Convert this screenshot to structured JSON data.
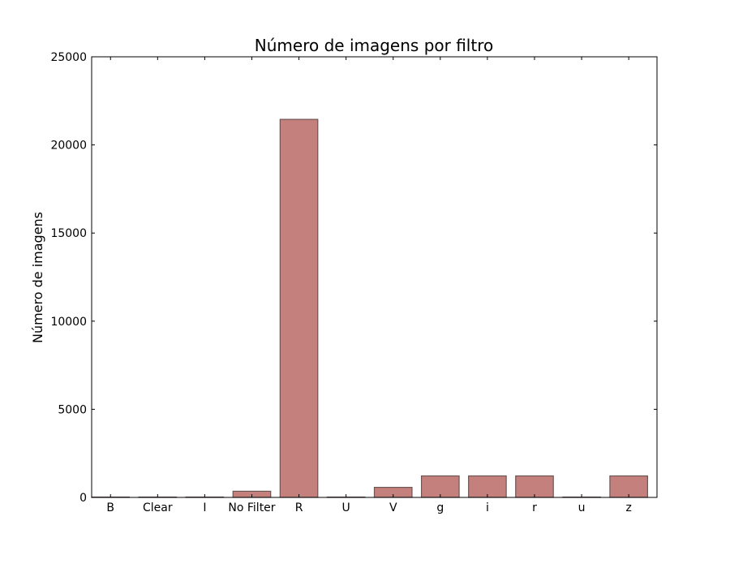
{
  "chart_data": {
    "type": "bar",
    "title": "Número de imagens por filtro",
    "xlabel": "",
    "ylabel": "Número de imagens",
    "categories": [
      "B",
      "Clear",
      "I",
      "No Filter",
      "R",
      "U",
      "V",
      "g",
      "i",
      "r",
      "u",
      "z"
    ],
    "values": [
      20,
      20,
      20,
      350,
      21450,
      20,
      570,
      1220,
      1220,
      1220,
      20,
      1220
    ],
    "ylim": [
      0,
      25000
    ],
    "yticks": [
      0,
      5000,
      10000,
      15000,
      20000,
      25000
    ],
    "grid": false,
    "legend": "none",
    "colors": {
      "bar_fill": "#c4807d",
      "bar_edge": "#6b5555",
      "axes": "#000000",
      "background": "#ffffff"
    }
  }
}
